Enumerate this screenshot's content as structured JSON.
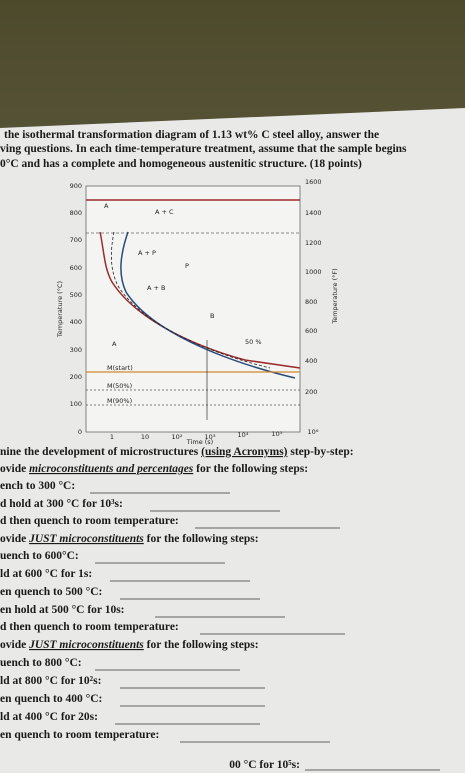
{
  "question": {
    "lines": [
      "the isothermal transformation diagram of 1.13 wt% C steel alloy, answer the",
      "ving questions. In each time-temperature treatment, assume that the sample begins",
      "0°C and has a complete and homogeneous austenitic structure. (18 points)"
    ]
  },
  "figure": {
    "y_label": "Temperature (°C)",
    "y2_label": "Temperature (°F)",
    "x_label": "Time (s)",
    "yticks": [
      "900",
      "800",
      "700",
      "600",
      "500",
      "400",
      "300",
      "200",
      "100",
      "0"
    ],
    "y2ticks": [
      "1600",
      "1400",
      "1200",
      "1000",
      "800",
      "600",
      "400",
      "200"
    ],
    "xticks": [
      "1",
      "10",
      "10²",
      "10³",
      "10⁴",
      "10⁵",
      "10⁶"
    ],
    "regions": [
      "A",
      "A + C",
      "A + P",
      "A + B",
      "P",
      "B",
      "50 %",
      "A",
      "M(start)",
      "M(50%)",
      "M(90%)"
    ]
  },
  "instructions": {
    "intro": [
      "nine the development of microstructures ",
      "(using Acronyms)",
      " step-by-step:"
    ],
    "part1": [
      "ovide ",
      "microconstituents and percentages",
      " for the following steps:"
    ],
    "part1_steps": [
      "ench to 300 °C:",
      "d hold at 300 °C for 10³s:",
      "d then quench to room temperature:"
    ],
    "part2": [
      "ovide ",
      "JUST microconstituents",
      " for the following steps:"
    ],
    "part2_steps": [
      "uench to 600°C:",
      "ld at 600 °C for 1s:",
      "en quench to 500 °C:",
      "en hold at 500 °C for 10s:",
      "d then quench to room temperature:"
    ],
    "part3": [
      "ovide ",
      "JUST microconstituents",
      " for the following steps:"
    ],
    "part3_steps": [
      "uench to 800 °C:",
      "ld at 800 °C for 10²s:",
      "en quench to 400 °C:",
      "ld at 400 °C for 20s:",
      "en quench to room temperature:"
    ],
    "cut_line": "00 °C for 10⁵s:"
  }
}
